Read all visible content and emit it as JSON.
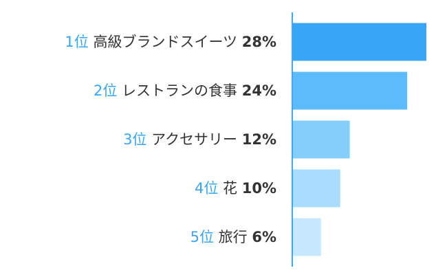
{
  "chart_data": {
    "type": "bar",
    "orientation": "horizontal",
    "title": "",
    "xlabel": "",
    "ylabel": "",
    "categories": [
      "高級ブランドスイーツ",
      "レストランの食事",
      "アクセサリー",
      "花",
      "旅行"
    ],
    "ranks": [
      "1位",
      "2位",
      "3位",
      "4位",
      "5位"
    ],
    "values": [
      28,
      24,
      12,
      10,
      6
    ],
    "value_labels": [
      "28%",
      "24%",
      "12%",
      "10%",
      "6%"
    ],
    "unit": "%",
    "xlim": [
      0,
      30
    ],
    "colors": [
      "#38a6f5",
      "#5cbcfb",
      "#84cefc",
      "#a9dcfd",
      "#c7e8fe"
    ],
    "axis_color": "#42a5f5",
    "rank_color": "#38a6f5",
    "label_color": "#333333",
    "grid": false,
    "legend": "none"
  }
}
